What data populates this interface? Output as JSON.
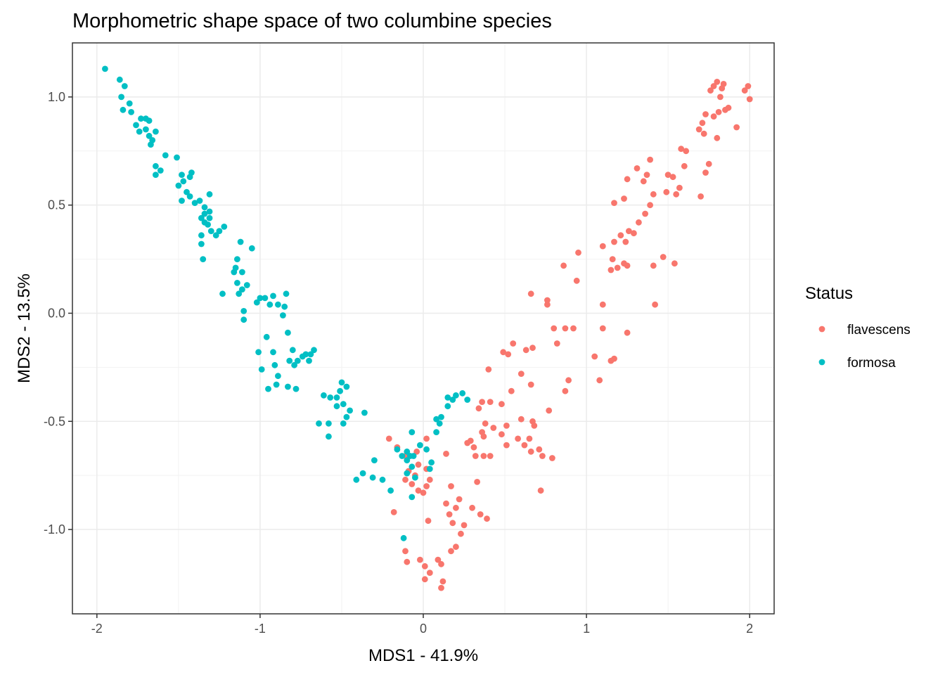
{
  "chart_data": {
    "type": "scatter",
    "title": "Morphometric shape space of two columbine species",
    "xlabel": "MDS1 - 41.9%",
    "ylabel": "MDS2 - 13.5%",
    "xlim": [
      -2.15,
      2.15
    ],
    "ylim": [
      -1.39,
      1.25
    ],
    "xticks": [
      -2,
      -1,
      0,
      1,
      2
    ],
    "xtick_labels": [
      "-2",
      "-1",
      "0",
      "1",
      "2"
    ],
    "yticks": [
      -1.0,
      -0.5,
      0.0,
      0.5,
      1.0
    ],
    "ytick_labels": [
      "-1.0",
      "-0.5",
      "0.0",
      "0.5",
      "1.0"
    ],
    "grid": true,
    "legend": {
      "title": "Status",
      "placement": "right"
    },
    "series": [
      {
        "name": "flavescens",
        "color": "#F8766D",
        "points": [
          [
            1.78,
            1.05
          ],
          [
            1.8,
            1.07
          ],
          [
            1.83,
            1.04
          ],
          [
            1.84,
            1.06
          ],
          [
            1.76,
            1.03
          ],
          [
            1.82,
            1.0
          ],
          [
            1.99,
            1.05
          ],
          [
            1.97,
            1.03
          ],
          [
            2.0,
            0.99
          ],
          [
            1.87,
            0.95
          ],
          [
            1.85,
            0.94
          ],
          [
            1.81,
            0.93
          ],
          [
            1.78,
            0.91
          ],
          [
            1.73,
            0.92
          ],
          [
            1.71,
            0.88
          ],
          [
            1.69,
            0.85
          ],
          [
            1.72,
            0.83
          ],
          [
            1.8,
            0.81
          ],
          [
            1.92,
            0.86
          ],
          [
            1.58,
            0.76
          ],
          [
            1.61,
            0.75
          ],
          [
            1.6,
            0.68
          ],
          [
            1.75,
            0.69
          ],
          [
            1.73,
            0.65
          ],
          [
            1.39,
            0.71
          ],
          [
            1.37,
            0.64
          ],
          [
            1.31,
            0.67
          ],
          [
            1.35,
            0.61
          ],
          [
            1.25,
            0.62
          ],
          [
            1.5,
            0.64
          ],
          [
            1.53,
            0.63
          ],
          [
            1.57,
            0.58
          ],
          [
            1.49,
            0.56
          ],
          [
            1.55,
            0.55
          ],
          [
            1.41,
            0.55
          ],
          [
            1.39,
            0.5
          ],
          [
            1.23,
            0.53
          ],
          [
            1.17,
            0.51
          ],
          [
            1.7,
            0.54
          ],
          [
            1.36,
            0.46
          ],
          [
            1.32,
            0.42
          ],
          [
            1.26,
            0.38
          ],
          [
            1.29,
            0.37
          ],
          [
            1.21,
            0.36
          ],
          [
            1.17,
            0.33
          ],
          [
            1.1,
            0.31
          ],
          [
            1.24,
            0.33
          ],
          [
            0.95,
            0.28
          ],
          [
            1.16,
            0.25
          ],
          [
            1.25,
            0.22
          ],
          [
            1.23,
            0.23
          ],
          [
            1.19,
            0.21
          ],
          [
            1.15,
            0.2
          ],
          [
            1.47,
            0.26
          ],
          [
            1.54,
            0.23
          ],
          [
            1.41,
            0.22
          ],
          [
            0.86,
            0.22
          ],
          [
            0.94,
            0.15
          ],
          [
            0.66,
            0.09
          ],
          [
            0.76,
            0.06
          ],
          [
            0.76,
            0.04
          ],
          [
            1.1,
            0.04
          ],
          [
            1.42,
            0.04
          ],
          [
            0.8,
            -0.07
          ],
          [
            0.87,
            -0.07
          ],
          [
            0.92,
            -0.07
          ],
          [
            1.1,
            -0.07
          ],
          [
            1.25,
            -0.09
          ],
          [
            0.82,
            -0.14
          ],
          [
            0.55,
            -0.14
          ],
          [
            0.67,
            -0.16
          ],
          [
            0.49,
            -0.18
          ],
          [
            0.63,
            -0.17
          ],
          [
            0.52,
            -0.19
          ],
          [
            1.05,
            -0.2
          ],
          [
            1.17,
            -0.21
          ],
          [
            1.15,
            -0.22
          ],
          [
            0.4,
            -0.26
          ],
          [
            0.6,
            -0.28
          ],
          [
            0.89,
            -0.31
          ],
          [
            1.08,
            -0.31
          ],
          [
            0.54,
            -0.36
          ],
          [
            0.66,
            -0.33
          ],
          [
            0.87,
            -0.36
          ],
          [
            0.36,
            -0.41
          ],
          [
            0.41,
            -0.41
          ],
          [
            0.48,
            -0.42
          ],
          [
            0.34,
            -0.44
          ],
          [
            0.38,
            -0.51
          ],
          [
            0.6,
            -0.49
          ],
          [
            0.67,
            -0.5
          ],
          [
            0.77,
            -0.45
          ],
          [
            0.51,
            -0.52
          ],
          [
            0.68,
            -0.52
          ],
          [
            0.43,
            -0.53
          ],
          [
            0.36,
            -0.55
          ],
          [
            0.37,
            -0.57
          ],
          [
            0.29,
            -0.59
          ],
          [
            0.27,
            -0.6
          ],
          [
            0.58,
            -0.58
          ],
          [
            0.48,
            -0.56
          ],
          [
            0.51,
            -0.61
          ],
          [
            0.65,
            -0.58
          ],
          [
            0.62,
            -0.61
          ],
          [
            0.66,
            -0.64
          ],
          [
            0.71,
            -0.63
          ],
          [
            0.73,
            -0.66
          ],
          [
            0.79,
            -0.67
          ],
          [
            0.31,
            -0.62
          ],
          [
            0.32,
            -0.66
          ],
          [
            0.37,
            -0.66
          ],
          [
            0.41,
            -0.66
          ],
          [
            0.14,
            -0.65
          ],
          [
            -0.21,
            -0.58
          ],
          [
            -0.16,
            -0.62
          ],
          [
            0.02,
            -0.58
          ],
          [
            -0.11,
            -0.66
          ],
          [
            -0.04,
            -0.64
          ],
          [
            -0.03,
            -0.7
          ],
          [
            0.02,
            -0.72
          ],
          [
            -0.09,
            -0.73
          ],
          [
            -0.11,
            -0.77
          ],
          [
            -0.05,
            -0.75
          ],
          [
            -0.07,
            -0.79
          ],
          [
            0.04,
            -0.77
          ],
          [
            0.02,
            -0.8
          ],
          [
            -0.03,
            -0.82
          ],
          [
            0.0,
            -0.83
          ],
          [
            0.17,
            -0.8
          ],
          [
            0.22,
            -0.86
          ],
          [
            0.14,
            -0.88
          ],
          [
            0.16,
            -0.93
          ],
          [
            0.2,
            -0.9
          ],
          [
            0.3,
            -0.9
          ],
          [
            0.35,
            -0.93
          ],
          [
            0.39,
            -0.95
          ],
          [
            0.33,
            -0.78
          ],
          [
            0.72,
            -0.82
          ],
          [
            0.03,
            -0.96
          ],
          [
            -0.18,
            -0.92
          ],
          [
            0.18,
            -0.97
          ],
          [
            0.25,
            -0.98
          ],
          [
            0.23,
            -1.02
          ],
          [
            0.2,
            -1.08
          ],
          [
            0.17,
            -1.1
          ],
          [
            -0.11,
            -1.1
          ],
          [
            -0.1,
            -1.15
          ],
          [
            0.09,
            -1.14
          ],
          [
            0.11,
            -1.16
          ],
          [
            -0.02,
            -1.14
          ],
          [
            0.01,
            -1.17
          ],
          [
            0.04,
            -1.2
          ],
          [
            0.01,
            -1.23
          ],
          [
            0.12,
            -1.24
          ],
          [
            0.11,
            -1.27
          ]
        ]
      },
      {
        "name": "formosa",
        "color": "#00BFC4",
        "points": [
          [
            -1.95,
            1.13
          ],
          [
            -1.86,
            1.08
          ],
          [
            -1.83,
            1.05
          ],
          [
            -1.85,
            1.0
          ],
          [
            -1.8,
            0.97
          ],
          [
            -1.84,
            0.94
          ],
          [
            -1.79,
            0.93
          ],
          [
            -1.73,
            0.9
          ],
          [
            -1.7,
            0.9
          ],
          [
            -1.68,
            0.89
          ],
          [
            -1.76,
            0.87
          ],
          [
            -1.7,
            0.85
          ],
          [
            -1.64,
            0.84
          ],
          [
            -1.74,
            0.84
          ],
          [
            -1.68,
            0.82
          ],
          [
            -1.66,
            0.8
          ],
          [
            -1.67,
            0.78
          ],
          [
            -1.58,
            0.73
          ],
          [
            -1.51,
            0.72
          ],
          [
            -1.64,
            0.68
          ],
          [
            -1.61,
            0.66
          ],
          [
            -1.64,
            0.64
          ],
          [
            -1.42,
            0.65
          ],
          [
            -1.43,
            0.63
          ],
          [
            -1.48,
            0.64
          ],
          [
            -1.47,
            0.61
          ],
          [
            -1.5,
            0.59
          ],
          [
            -1.45,
            0.56
          ],
          [
            -1.31,
            0.55
          ],
          [
            -1.43,
            0.54
          ],
          [
            -1.37,
            0.52
          ],
          [
            -1.48,
            0.52
          ],
          [
            -1.4,
            0.51
          ],
          [
            -1.31,
            0.47
          ],
          [
            -1.34,
            0.49
          ],
          [
            -1.31,
            0.44
          ],
          [
            -1.34,
            0.46
          ],
          [
            -1.36,
            0.44
          ],
          [
            -1.34,
            0.42
          ],
          [
            -1.32,
            0.41
          ],
          [
            -1.3,
            0.38
          ],
          [
            -1.22,
            0.4
          ],
          [
            -1.25,
            0.38
          ],
          [
            -1.27,
            0.36
          ],
          [
            -1.36,
            0.36
          ],
          [
            -1.36,
            0.32
          ],
          [
            -1.12,
            0.33
          ],
          [
            -1.05,
            0.3
          ],
          [
            -1.35,
            0.25
          ],
          [
            -1.14,
            0.25
          ],
          [
            -1.15,
            0.21
          ],
          [
            -1.11,
            0.19
          ],
          [
            -1.16,
            0.19
          ],
          [
            -1.14,
            0.14
          ],
          [
            -1.08,
            0.13
          ],
          [
            -1.11,
            0.11
          ],
          [
            -1.23,
            0.09
          ],
          [
            -1.13,
            0.09
          ],
          [
            -0.84,
            0.09
          ],
          [
            -0.92,
            0.08
          ],
          [
            -1.0,
            0.07
          ],
          [
            -0.97,
            0.07
          ],
          [
            -1.02,
            0.05
          ],
          [
            -0.94,
            0.04
          ],
          [
            -0.89,
            0.04
          ],
          [
            -0.85,
            0.03
          ],
          [
            -1.1,
            0.01
          ],
          [
            -1.1,
            -0.03
          ],
          [
            -0.86,
            -0.01
          ],
          [
            -0.83,
            -0.09
          ],
          [
            -0.96,
            -0.11
          ],
          [
            -0.8,
            -0.17
          ],
          [
            -0.92,
            -0.18
          ],
          [
            -1.01,
            -0.18
          ],
          [
            -0.67,
            -0.17
          ],
          [
            -0.69,
            -0.19
          ],
          [
            -0.72,
            -0.19
          ],
          [
            -0.74,
            -0.2
          ],
          [
            -0.82,
            -0.22
          ],
          [
            -0.77,
            -0.22
          ],
          [
            -0.7,
            -0.22
          ],
          [
            -0.91,
            -0.24
          ],
          [
            -0.79,
            -0.24
          ],
          [
            -0.99,
            -0.26
          ],
          [
            -0.89,
            -0.29
          ],
          [
            -0.9,
            -0.33
          ],
          [
            -0.83,
            -0.34
          ],
          [
            -0.78,
            -0.35
          ],
          [
            -0.95,
            -0.35
          ],
          [
            -0.5,
            -0.32
          ],
          [
            -0.47,
            -0.34
          ],
          [
            -0.51,
            -0.36
          ],
          [
            -0.61,
            -0.38
          ],
          [
            -0.53,
            -0.39
          ],
          [
            -0.57,
            -0.39
          ],
          [
            -0.49,
            -0.42
          ],
          [
            -0.53,
            -0.43
          ],
          [
            -0.45,
            -0.45
          ],
          [
            -0.36,
            -0.46
          ],
          [
            -0.47,
            -0.48
          ],
          [
            -0.64,
            -0.51
          ],
          [
            -0.58,
            -0.51
          ],
          [
            -0.49,
            -0.51
          ],
          [
            -0.58,
            -0.57
          ],
          [
            -0.3,
            -0.68
          ],
          [
            -0.37,
            -0.74
          ],
          [
            -0.41,
            -0.77
          ],
          [
            -0.31,
            -0.76
          ],
          [
            -0.25,
            -0.77
          ],
          [
            -0.2,
            -0.82
          ],
          [
            -0.16,
            -0.63
          ],
          [
            -0.1,
            -0.64
          ],
          [
            -0.13,
            -0.66
          ],
          [
            -0.02,
            -0.61
          ],
          [
            0.02,
            -0.63
          ],
          [
            -0.08,
            -0.66
          ],
          [
            -0.07,
            -0.55
          ],
          [
            -0.07,
            -0.71
          ],
          [
            -0.06,
            -0.66
          ],
          [
            -0.1,
            -0.68
          ],
          [
            -0.05,
            -0.76
          ],
          [
            0.04,
            -0.72
          ],
          [
            0.05,
            -0.69
          ],
          [
            -0.1,
            -0.74
          ],
          [
            0.08,
            -0.55
          ],
          [
            0.1,
            -0.51
          ],
          [
            0.08,
            -0.49
          ],
          [
            0.11,
            -0.48
          ],
          [
            0.15,
            -0.43
          ],
          [
            0.15,
            -0.39
          ],
          [
            0.2,
            -0.38
          ],
          [
            0.24,
            -0.37
          ],
          [
            0.27,
            -0.4
          ],
          [
            0.18,
            -0.4
          ],
          [
            -0.12,
            -1.04
          ],
          [
            -0.07,
            -0.85
          ]
        ]
      }
    ]
  }
}
